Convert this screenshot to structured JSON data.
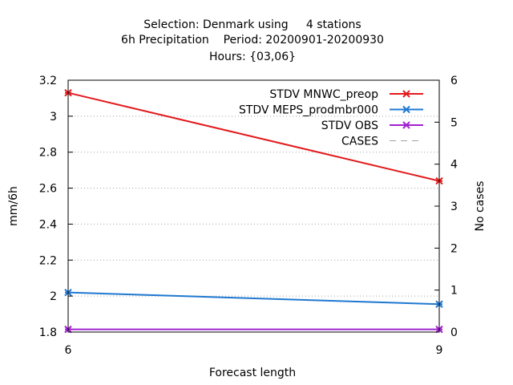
{
  "chart_data": {
    "type": "line",
    "title_lines": [
      "Selection: Denmark using     4 stations",
      "6h Precipitation    Period: 20200901-20200930",
      "Hours: {03,06}"
    ],
    "xlabel": "Forecast length",
    "ylabel": "mm/6h",
    "y2label": "No cases",
    "x": [
      6,
      9
    ],
    "x_ticks": [
      "6",
      "9"
    ],
    "ylim": [
      1.8,
      3.2
    ],
    "y_ticks": [
      "1.8",
      "2",
      "2.2",
      "2.4",
      "2.6",
      "2.8",
      "3",
      "3.2"
    ],
    "y2lim": [
      0,
      6
    ],
    "y2_ticks": [
      "0",
      "1",
      "2",
      "3",
      "4",
      "5",
      "6"
    ],
    "grid": true,
    "legend_position": "top-right",
    "series": [
      {
        "name": "STDV MNWC_preop",
        "values": [
          3.13,
          2.64
        ],
        "color": "#e31a1c",
        "axis": "y1",
        "marker": "x"
      },
      {
        "name": "STDV MEPS_prodmbr000",
        "values": [
          2.02,
          1.955
        ],
        "color": "#1f78d1",
        "axis": "y1",
        "marker": "x"
      },
      {
        "name": "STDV OBS",
        "values": [
          1.815,
          1.815
        ],
        "color": "#a020d0",
        "axis": "y1",
        "marker": "x"
      },
      {
        "name": "CASES",
        "values": [
          6,
          6
        ],
        "color": "#a0a0a0",
        "axis": "y2",
        "marker": "none",
        "dashed": true
      }
    ]
  }
}
